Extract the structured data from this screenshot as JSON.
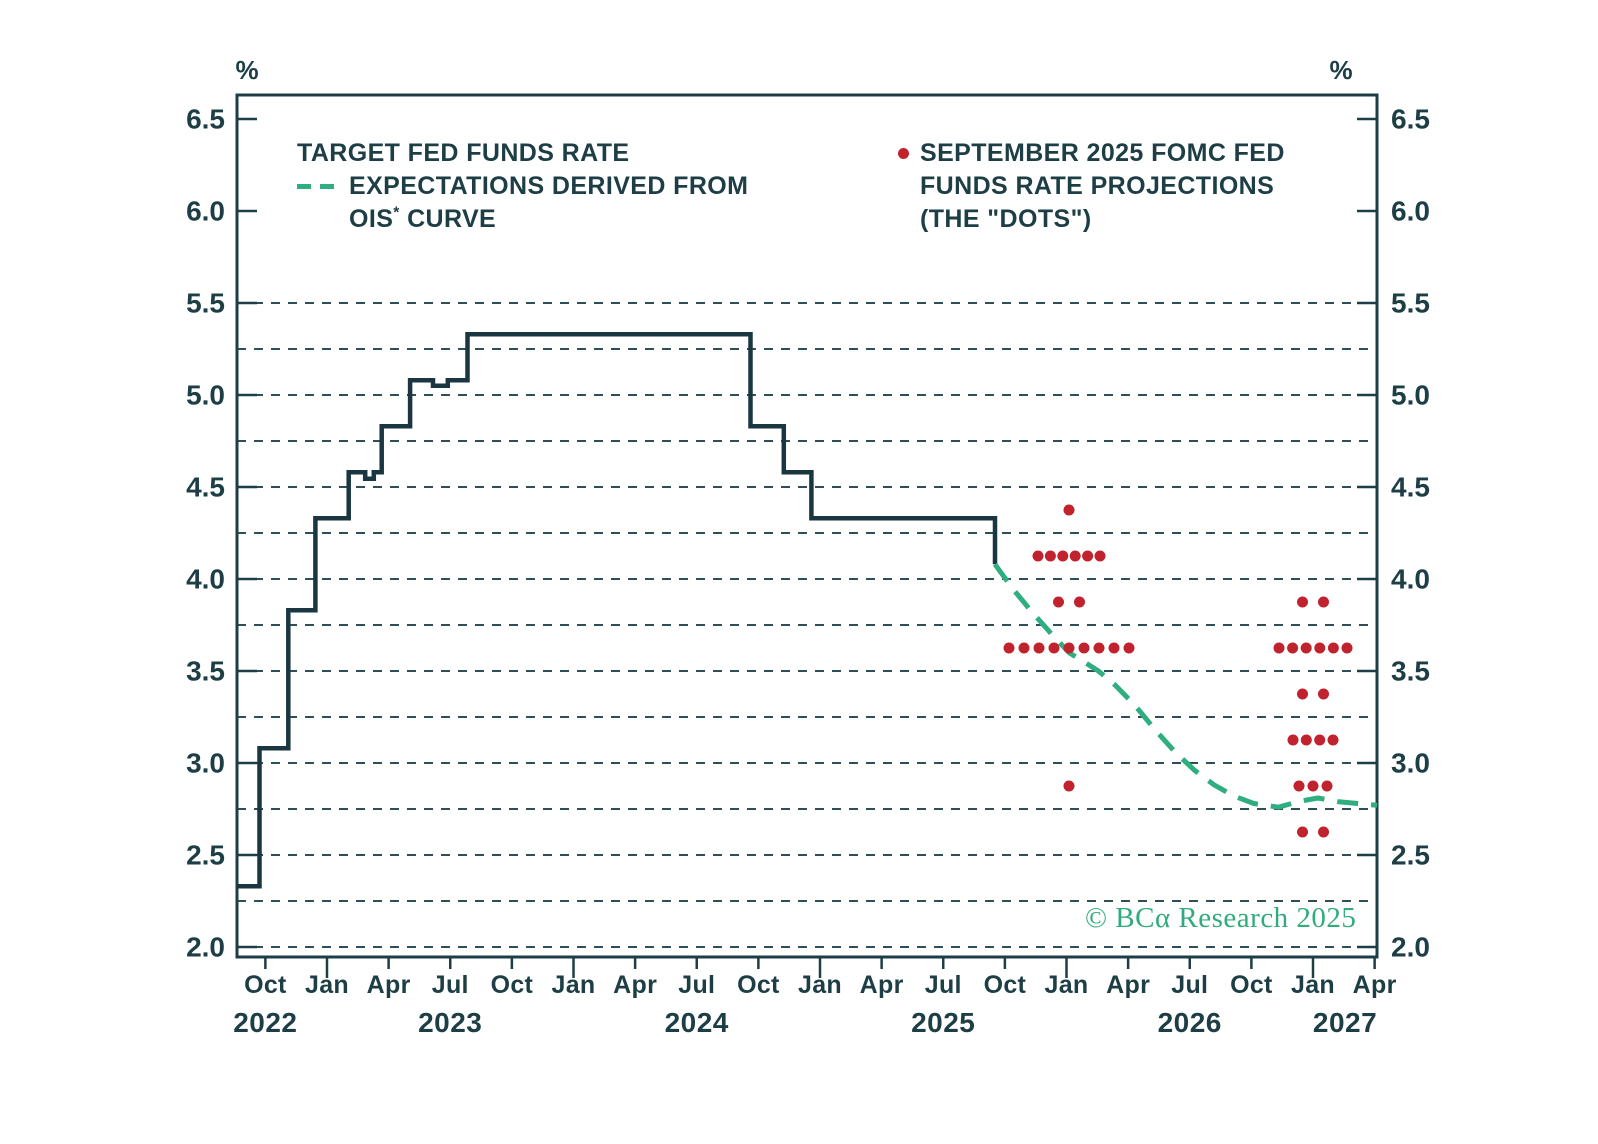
{
  "legend": {
    "target": {
      "line1": "TARGET FED FUNDS RATE"
    },
    "ois": {
      "line1": "EXPECTATIONS DERIVED FROM",
      "line2_prefix": "OIS",
      "line2_sup": "*",
      "line2_rest": " CURVE"
    },
    "dots": {
      "line1": "SEPTEMBER 2025 FOMC FED",
      "line2": "FUNDS RATE PROJECTIONS",
      "line3": "(THE \"DOTS\")"
    }
  },
  "watermark": "© BCα Research 2025",
  "colors": {
    "background": "#ffffff",
    "text_teal": "#1e3e46",
    "step_line": "#1a3641",
    "grid": "#2e4f56",
    "green": "#2fae80",
    "red": "#c1232e",
    "watermark_green": "#31ab7d"
  },
  "chart_data": {
    "type": "line",
    "title": "",
    "y_axis": {
      "unit_left": "%",
      "unit_right": "%",
      "min": 2.0,
      "max": 6.5,
      "tick_step": 0.5,
      "ticks": [
        {
          "label": "6.5",
          "v": 6.5
        },
        {
          "label": "6.0",
          "v": 6.0
        },
        {
          "label": "5.5",
          "v": 5.5
        },
        {
          "label": "5.0",
          "v": 5.0
        },
        {
          "label": "4.5",
          "v": 4.5
        },
        {
          "label": "4.0",
          "v": 4.0
        },
        {
          "label": "3.5",
          "v": 3.5
        },
        {
          "label": "3.0",
          "v": 3.0
        },
        {
          "label": "2.5",
          "v": 2.5
        },
        {
          "label": "2.0",
          "v": 2.0
        }
      ],
      "gridlines": {
        "min": 2.0,
        "max": 5.5,
        "step": 0.25,
        "style": "dashed"
      }
    },
    "x_axis": {
      "quarters": [
        {
          "label": "Oct",
          "t": 2022.75,
          "year_start": false
        },
        {
          "label": "Jan",
          "t": 2023.0,
          "year_start": true
        },
        {
          "label": "Apr",
          "t": 2023.25,
          "year_start": false
        },
        {
          "label": "Jul",
          "t": 2023.5,
          "year_start": false
        },
        {
          "label": "Oct",
          "t": 2023.75,
          "year_start": false
        },
        {
          "label": "Jan",
          "t": 2024.0,
          "year_start": true
        },
        {
          "label": "Apr",
          "t": 2024.25,
          "year_start": false
        },
        {
          "label": "Jul",
          "t": 2024.5,
          "year_start": false
        },
        {
          "label": "Oct",
          "t": 2024.75,
          "year_start": false
        },
        {
          "label": "Jan",
          "t": 2025.0,
          "year_start": true
        },
        {
          "label": "Apr",
          "t": 2025.25,
          "year_start": false
        },
        {
          "label": "Jul",
          "t": 2025.5,
          "year_start": false
        },
        {
          "label": "Oct",
          "t": 2025.75,
          "year_start": false
        },
        {
          "label": "Jan",
          "t": 2026.0,
          "year_start": true
        },
        {
          "label": "Apr",
          "t": 2026.25,
          "year_start": false
        },
        {
          "label": "Jul",
          "t": 2026.5,
          "year_start": false
        },
        {
          "label": "Oct",
          "t": 2026.75,
          "year_start": false
        },
        {
          "label": "Jan",
          "t": 2027.0,
          "year_start": true
        },
        {
          "label": "Apr",
          "t": 2027.25,
          "year_start": false
        }
      ],
      "years": [
        {
          "label": "2022",
          "t": 2022.75
        },
        {
          "label": "2023",
          "t": 2023.5
        },
        {
          "label": "2024",
          "t": 2024.5
        },
        {
          "label": "2025",
          "t": 2025.5
        },
        {
          "label": "2026",
          "t": 2026.5
        },
        {
          "label": "2027",
          "t": 2027.13
        }
      ]
    },
    "series": {
      "target_fed_funds_rate": {
        "label": "TARGET FED FUNDS RATE",
        "style": "solid-step",
        "points": [
          [
            2022.635,
            2.33
          ],
          [
            2022.726,
            2.33
          ],
          [
            2022.726,
            3.08
          ],
          [
            2022.843,
            3.08
          ],
          [
            2022.843,
            3.83
          ],
          [
            2022.953,
            3.83
          ],
          [
            2022.953,
            4.33
          ],
          [
            2023.088,
            4.33
          ],
          [
            2023.088,
            4.58
          ],
          [
            2023.155,
            4.58
          ],
          [
            2023.155,
            4.545
          ],
          [
            2023.19,
            4.545
          ],
          [
            2023.19,
            4.58
          ],
          [
            2023.222,
            4.58
          ],
          [
            2023.222,
            4.83
          ],
          [
            2023.337,
            4.83
          ],
          [
            2023.337,
            5.08
          ],
          [
            2023.43,
            5.08
          ],
          [
            2023.43,
            5.05
          ],
          [
            2023.49,
            5.05
          ],
          [
            2023.49,
            5.08
          ],
          [
            2023.57,
            5.08
          ],
          [
            2023.57,
            5.33
          ],
          [
            2024.718,
            5.33
          ],
          [
            2024.718,
            4.83
          ],
          [
            2024.853,
            4.83
          ],
          [
            2024.853,
            4.58
          ],
          [
            2024.965,
            4.58
          ],
          [
            2024.965,
            4.33
          ],
          [
            2025.71,
            4.33
          ],
          [
            2025.71,
            4.08
          ]
        ]
      },
      "ois_expectations": {
        "label": "EXPECTATIONS DERIVED FROM OIS* CURVE",
        "style": "dashed-line",
        "points": [
          [
            2025.71,
            4.08
          ],
          [
            2025.78,
            3.95
          ],
          [
            2025.86,
            3.82
          ],
          [
            2025.94,
            3.7
          ],
          [
            2026.01,
            3.6
          ],
          [
            2026.07,
            3.55
          ],
          [
            2026.13,
            3.5
          ],
          [
            2026.2,
            3.42
          ],
          [
            2026.28,
            3.31
          ],
          [
            2026.36,
            3.18
          ],
          [
            2026.44,
            3.06
          ],
          [
            2026.52,
            2.96
          ],
          [
            2026.6,
            2.88
          ],
          [
            2026.68,
            2.82
          ],
          [
            2026.76,
            2.78
          ],
          [
            2026.86,
            2.76
          ],
          [
            2026.94,
            2.79
          ],
          [
            2027.02,
            2.81
          ],
          [
            2027.1,
            2.79
          ],
          [
            2027.18,
            2.78
          ],
          [
            2027.26,
            2.77
          ]
        ]
      },
      "fomc_dots": {
        "label": "SEPTEMBER 2025 FOMC FED FUNDS RATE PROJECTIONS (THE \"DOTS\")",
        "dot_radius": 5.5,
        "clusters": [
          {
            "projection_year": "2025",
            "t": 2026.01,
            "rows": [
              {
                "rate": 4.375,
                "offsets": [
                  0
                ]
              },
              {
                "rate": 4.125,
                "offsets": [
                  -31,
                  -18.6,
                  -6.2,
                  6.2,
                  18.6,
                  31
                ]
              },
              {
                "rate": 3.875,
                "offsets": [
                  -10.5,
                  10.5
                ]
              },
              {
                "rate": 3.625,
                "offsets": [
                  -60,
                  -45,
                  -30,
                  -15,
                  0,
                  15,
                  30,
                  45,
                  60
                ]
              },
              {
                "rate": 2.875,
                "offsets": [
                  0
                ]
              }
            ]
          },
          {
            "projection_year": "2026",
            "t": 2027.0,
            "rows": [
              {
                "rate": 3.875,
                "offsets": [
                  -10.5,
                  10.5
                ]
              },
              {
                "rate": 3.625,
                "offsets": [
                  -34,
                  -20.4,
                  -6.8,
                  6.8,
                  20.4,
                  34
                ]
              },
              {
                "rate": 3.375,
                "offsets": [
                  -10.5,
                  10.5
                ]
              },
              {
                "rate": 3.125,
                "offsets": [
                  -20,
                  -6.7,
                  6.7,
                  20
                ]
              },
              {
                "rate": 2.875,
                "offsets": [
                  -14,
                  0,
                  14
                ]
              },
              {
                "rate": 2.625,
                "offsets": [
                  -10.5,
                  10.5
                ]
              }
            ]
          }
        ]
      }
    }
  }
}
